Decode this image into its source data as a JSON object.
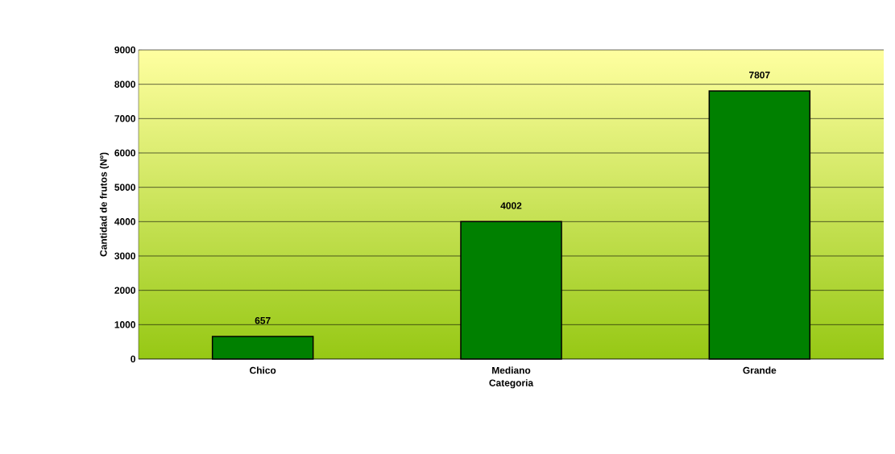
{
  "chart_data": {
    "type": "bar",
    "xlabel": "Categoria",
    "ylabel": "Cantidad de frutos (Nº)",
    "categories": [
      "Chico",
      "Mediano",
      "Grande"
    ],
    "values": [
      657,
      4002,
      7807
    ],
    "color": "#008000",
    "ylim": [
      0,
      9000
    ],
    "yticks": [
      0,
      1000,
      2000,
      3000,
      4000,
      5000,
      6000,
      7000,
      8000,
      9000
    ],
    "grid": "y",
    "data_labels": true
  }
}
